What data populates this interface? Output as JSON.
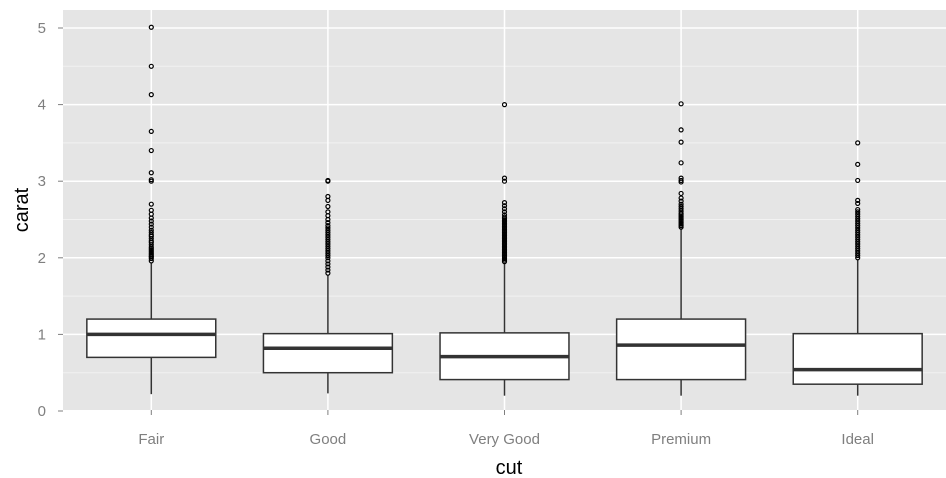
{
  "chart_data": {
    "type": "box",
    "xlabel": "cut",
    "ylabel": "carat",
    "ylim": [
      0,
      5.25
    ],
    "y_ticks": [
      0,
      1,
      2,
      3,
      4,
      5
    ],
    "grid": true,
    "colors": {
      "panel_bg": "#e5e5e5",
      "grid_major": "#ffffff",
      "grid_minor": "#f2f2f2",
      "box_fill": "#ffffff",
      "box_stroke": "#333333",
      "outlier": "#000000",
      "tick_label": "#7f7f7f"
    },
    "categories": [
      "Fair",
      "Good",
      "Very Good",
      "Premium",
      "Ideal"
    ],
    "boxes": [
      {
        "category": "Fair",
        "lower_whisker": 0.22,
        "q1": 0.7,
        "median": 1.0,
        "q3": 1.2,
        "upper_whisker": 1.93,
        "outliers": [
          1.96,
          1.99,
          2.01,
          2.02,
          2.04,
          2.06,
          2.08,
          2.1,
          2.12,
          2.14,
          2.17,
          2.2,
          2.22,
          2.25,
          2.28,
          2.3,
          2.33,
          2.36,
          2.4,
          2.44,
          2.48,
          2.52,
          2.57,
          2.62,
          2.7,
          3.0,
          3.02,
          3.11,
          3.4,
          3.65,
          4.13,
          4.5,
          5.01
        ]
      },
      {
        "category": "Good",
        "lower_whisker": 0.23,
        "q1": 0.5,
        "median": 0.82,
        "q3": 1.01,
        "upper_whisker": 1.77,
        "outliers": [
          1.8,
          1.84,
          1.88,
          1.92,
          1.96,
          2.0,
          2.03,
          2.06,
          2.09,
          2.12,
          2.15,
          2.18,
          2.21,
          2.24,
          2.27,
          2.3,
          2.33,
          2.36,
          2.39,
          2.42,
          2.46,
          2.5,
          2.55,
          2.6,
          2.67,
          2.75,
          2.8,
          3.0,
          3.01
        ]
      },
      {
        "category": "Very Good",
        "lower_whisker": 0.2,
        "q1": 0.41,
        "median": 0.71,
        "q3": 1.02,
        "upper_whisker": 1.93,
        "outliers": [
          1.95,
          1.97,
          1.99,
          2.01,
          2.03,
          2.05,
          2.07,
          2.09,
          2.11,
          2.13,
          2.15,
          2.17,
          2.19,
          2.21,
          2.23,
          2.25,
          2.27,
          2.29,
          2.31,
          2.33,
          2.35,
          2.37,
          2.39,
          2.41,
          2.43,
          2.45,
          2.47,
          2.49,
          2.51,
          2.53,
          2.56,
          2.6,
          2.64,
          2.68,
          2.72,
          3.0,
          3.04,
          4.0
        ]
      },
      {
        "category": "Premium",
        "lower_whisker": 0.2,
        "q1": 0.41,
        "median": 0.86,
        "q3": 1.2,
        "upper_whisker": 2.38,
        "outliers": [
          2.4,
          2.42,
          2.44,
          2.46,
          2.48,
          2.5,
          2.52,
          2.54,
          2.56,
          2.58,
          2.61,
          2.64,
          2.67,
          2.7,
          2.74,
          2.78,
          2.84,
          2.99,
          3.01,
          3.04,
          3.24,
          3.51,
          3.67,
          4.01
        ]
      },
      {
        "category": "Ideal",
        "lower_whisker": 0.2,
        "q1": 0.35,
        "median": 0.54,
        "q3": 1.01,
        "upper_whisker": 1.98,
        "outliers": [
          2.0,
          2.03,
          2.06,
          2.09,
          2.12,
          2.15,
          2.18,
          2.21,
          2.24,
          2.27,
          2.3,
          2.33,
          2.36,
          2.39,
          2.42,
          2.45,
          2.48,
          2.51,
          2.54,
          2.57,
          2.6,
          2.63,
          2.71,
          2.75,
          3.01,
          3.22,
          3.5
        ]
      }
    ]
  }
}
